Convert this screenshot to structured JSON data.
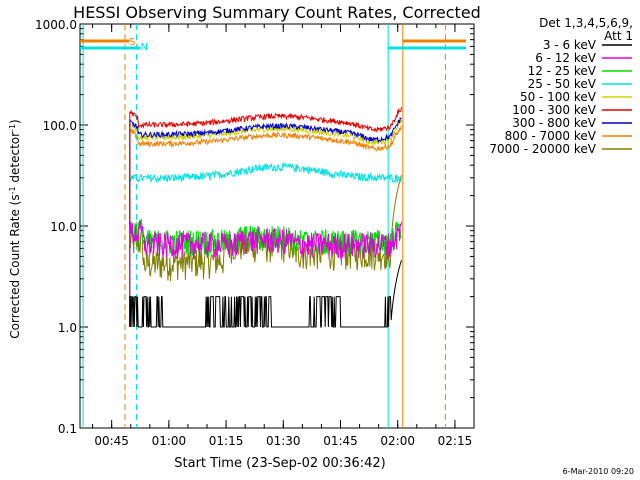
{
  "chart_data": {
    "type": "line",
    "title": "HESSI Observing Summary Count Rates, Corrected",
    "xlabel": "Start Time (23-Sep-02 00:36:42)",
    "ylabel_main": "Corrected Count Rate (s",
    "ylabel_sup1": "-1",
    "ylabel_mid": " detector",
    "ylabel_sup2": "-1",
    "ylabel_end": ")",
    "yscale": "log",
    "ylim": [
      0.1,
      1000
    ],
    "xlim": [
      "00:36:42",
      "02:20:00"
    ],
    "yticks": [
      {
        "v": 0.1,
        "label": "0.1"
      },
      {
        "v": 1,
        "label": "1.0"
      },
      {
        "v": 10,
        "label": "10.0"
      },
      {
        "v": 100,
        "label": "100.0"
      },
      {
        "v": 1000,
        "label": "1000.0"
      }
    ],
    "xticks": [
      "00:45",
      "01:00",
      "01:15",
      "01:30",
      "01:45",
      "02:00",
      "02:15"
    ],
    "legend_header": [
      "Det 1,3,4,5,6,9,",
      "Att 1"
    ],
    "legend_position": "right",
    "series": [
      {
        "name": "3 - 6 keV",
        "color": "#000000",
        "level": 1.0,
        "variant": "spiky"
      },
      {
        "name": "6 - 12 keV",
        "color": "#e000e0",
        "level": 7.0,
        "variant": "noisy"
      },
      {
        "name": "12 - 25 keV",
        "color": "#00e000",
        "level": 7.5,
        "variant": "noisy"
      },
      {
        "name": "25 - 50 keV",
        "color": "#00e0e0",
        "level": 35,
        "variant": "hump"
      },
      {
        "name": "50 - 100 keV",
        "color": "#d0d000",
        "level": 75,
        "variant": "hump"
      },
      {
        "name": "100 - 300 keV",
        "color": "#e00000",
        "level": 100,
        "variant": "hump"
      },
      {
        "name": "300 - 800 keV",
        "color": "#0000c0",
        "level": 80,
        "variant": "hump"
      },
      {
        "name": "800 - 7000 keV",
        "color": "#f08000",
        "level": 65,
        "variant": "hump"
      },
      {
        "name": "7000 - 20000 keV",
        "color": "#808000",
        "level": 5,
        "variant": "dip"
      }
    ],
    "markers": [
      {
        "label": "S",
        "color": "#f08000",
        "time": "00:48:30"
      },
      {
        "label": "N",
        "color": "#00e0e0",
        "time": "00:51:30"
      }
    ],
    "footer_date": "6-Mar-2010 09:20"
  }
}
